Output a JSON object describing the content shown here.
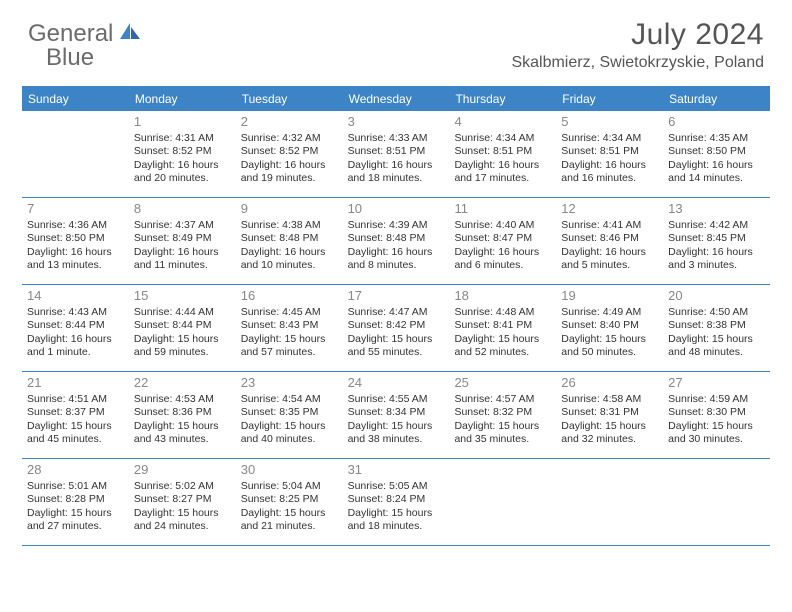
{
  "brand": {
    "part1": "General",
    "part2": "Blue"
  },
  "title": "July 2024",
  "location": "Skalbmierz, Swietokrzyskie, Poland",
  "colors": {
    "header_bg": "#3d84c6",
    "header_text": "#ffffff",
    "rule": "#3d84c6",
    "daynum": "#888888",
    "body_text": "#333333",
    "logo_gray": "#6b6b6b",
    "logo_blue": "#3d84c6",
    "page_bg": "#ffffff"
  },
  "day_names": [
    "Sunday",
    "Monday",
    "Tuesday",
    "Wednesday",
    "Thursday",
    "Friday",
    "Saturday"
  ],
  "weeks": [
    [
      {
        "n": "",
        "sunrise": "",
        "sunset": "",
        "daylight1": "",
        "daylight2": ""
      },
      {
        "n": "1",
        "sunrise": "Sunrise: 4:31 AM",
        "sunset": "Sunset: 8:52 PM",
        "daylight1": "Daylight: 16 hours",
        "daylight2": "and 20 minutes."
      },
      {
        "n": "2",
        "sunrise": "Sunrise: 4:32 AM",
        "sunset": "Sunset: 8:52 PM",
        "daylight1": "Daylight: 16 hours",
        "daylight2": "and 19 minutes."
      },
      {
        "n": "3",
        "sunrise": "Sunrise: 4:33 AM",
        "sunset": "Sunset: 8:51 PM",
        "daylight1": "Daylight: 16 hours",
        "daylight2": "and 18 minutes."
      },
      {
        "n": "4",
        "sunrise": "Sunrise: 4:34 AM",
        "sunset": "Sunset: 8:51 PM",
        "daylight1": "Daylight: 16 hours",
        "daylight2": "and 17 minutes."
      },
      {
        "n": "5",
        "sunrise": "Sunrise: 4:34 AM",
        "sunset": "Sunset: 8:51 PM",
        "daylight1": "Daylight: 16 hours",
        "daylight2": "and 16 minutes."
      },
      {
        "n": "6",
        "sunrise": "Sunrise: 4:35 AM",
        "sunset": "Sunset: 8:50 PM",
        "daylight1": "Daylight: 16 hours",
        "daylight2": "and 14 minutes."
      }
    ],
    [
      {
        "n": "7",
        "sunrise": "Sunrise: 4:36 AM",
        "sunset": "Sunset: 8:50 PM",
        "daylight1": "Daylight: 16 hours",
        "daylight2": "and 13 minutes."
      },
      {
        "n": "8",
        "sunrise": "Sunrise: 4:37 AM",
        "sunset": "Sunset: 8:49 PM",
        "daylight1": "Daylight: 16 hours",
        "daylight2": "and 11 minutes."
      },
      {
        "n": "9",
        "sunrise": "Sunrise: 4:38 AM",
        "sunset": "Sunset: 8:48 PM",
        "daylight1": "Daylight: 16 hours",
        "daylight2": "and 10 minutes."
      },
      {
        "n": "10",
        "sunrise": "Sunrise: 4:39 AM",
        "sunset": "Sunset: 8:48 PM",
        "daylight1": "Daylight: 16 hours",
        "daylight2": "and 8 minutes."
      },
      {
        "n": "11",
        "sunrise": "Sunrise: 4:40 AM",
        "sunset": "Sunset: 8:47 PM",
        "daylight1": "Daylight: 16 hours",
        "daylight2": "and 6 minutes."
      },
      {
        "n": "12",
        "sunrise": "Sunrise: 4:41 AM",
        "sunset": "Sunset: 8:46 PM",
        "daylight1": "Daylight: 16 hours",
        "daylight2": "and 5 minutes."
      },
      {
        "n": "13",
        "sunrise": "Sunrise: 4:42 AM",
        "sunset": "Sunset: 8:45 PM",
        "daylight1": "Daylight: 16 hours",
        "daylight2": "and 3 minutes."
      }
    ],
    [
      {
        "n": "14",
        "sunrise": "Sunrise: 4:43 AM",
        "sunset": "Sunset: 8:44 PM",
        "daylight1": "Daylight: 16 hours",
        "daylight2": "and 1 minute."
      },
      {
        "n": "15",
        "sunrise": "Sunrise: 4:44 AM",
        "sunset": "Sunset: 8:44 PM",
        "daylight1": "Daylight: 15 hours",
        "daylight2": "and 59 minutes."
      },
      {
        "n": "16",
        "sunrise": "Sunrise: 4:45 AM",
        "sunset": "Sunset: 8:43 PM",
        "daylight1": "Daylight: 15 hours",
        "daylight2": "and 57 minutes."
      },
      {
        "n": "17",
        "sunrise": "Sunrise: 4:47 AM",
        "sunset": "Sunset: 8:42 PM",
        "daylight1": "Daylight: 15 hours",
        "daylight2": "and 55 minutes."
      },
      {
        "n": "18",
        "sunrise": "Sunrise: 4:48 AM",
        "sunset": "Sunset: 8:41 PM",
        "daylight1": "Daylight: 15 hours",
        "daylight2": "and 52 minutes."
      },
      {
        "n": "19",
        "sunrise": "Sunrise: 4:49 AM",
        "sunset": "Sunset: 8:40 PM",
        "daylight1": "Daylight: 15 hours",
        "daylight2": "and 50 minutes."
      },
      {
        "n": "20",
        "sunrise": "Sunrise: 4:50 AM",
        "sunset": "Sunset: 8:38 PM",
        "daylight1": "Daylight: 15 hours",
        "daylight2": "and 48 minutes."
      }
    ],
    [
      {
        "n": "21",
        "sunrise": "Sunrise: 4:51 AM",
        "sunset": "Sunset: 8:37 PM",
        "daylight1": "Daylight: 15 hours",
        "daylight2": "and 45 minutes."
      },
      {
        "n": "22",
        "sunrise": "Sunrise: 4:53 AM",
        "sunset": "Sunset: 8:36 PM",
        "daylight1": "Daylight: 15 hours",
        "daylight2": "and 43 minutes."
      },
      {
        "n": "23",
        "sunrise": "Sunrise: 4:54 AM",
        "sunset": "Sunset: 8:35 PM",
        "daylight1": "Daylight: 15 hours",
        "daylight2": "and 40 minutes."
      },
      {
        "n": "24",
        "sunrise": "Sunrise: 4:55 AM",
        "sunset": "Sunset: 8:34 PM",
        "daylight1": "Daylight: 15 hours",
        "daylight2": "and 38 minutes."
      },
      {
        "n": "25",
        "sunrise": "Sunrise: 4:57 AM",
        "sunset": "Sunset: 8:32 PM",
        "daylight1": "Daylight: 15 hours",
        "daylight2": "and 35 minutes."
      },
      {
        "n": "26",
        "sunrise": "Sunrise: 4:58 AM",
        "sunset": "Sunset: 8:31 PM",
        "daylight1": "Daylight: 15 hours",
        "daylight2": "and 32 minutes."
      },
      {
        "n": "27",
        "sunrise": "Sunrise: 4:59 AM",
        "sunset": "Sunset: 8:30 PM",
        "daylight1": "Daylight: 15 hours",
        "daylight2": "and 30 minutes."
      }
    ],
    [
      {
        "n": "28",
        "sunrise": "Sunrise: 5:01 AM",
        "sunset": "Sunset: 8:28 PM",
        "daylight1": "Daylight: 15 hours",
        "daylight2": "and 27 minutes."
      },
      {
        "n": "29",
        "sunrise": "Sunrise: 5:02 AM",
        "sunset": "Sunset: 8:27 PM",
        "daylight1": "Daylight: 15 hours",
        "daylight2": "and 24 minutes."
      },
      {
        "n": "30",
        "sunrise": "Sunrise: 5:04 AM",
        "sunset": "Sunset: 8:25 PM",
        "daylight1": "Daylight: 15 hours",
        "daylight2": "and 21 minutes."
      },
      {
        "n": "31",
        "sunrise": "Sunrise: 5:05 AM",
        "sunset": "Sunset: 8:24 PM",
        "daylight1": "Daylight: 15 hours",
        "daylight2": "and 18 minutes."
      },
      {
        "n": "",
        "sunrise": "",
        "sunset": "",
        "daylight1": "",
        "daylight2": ""
      },
      {
        "n": "",
        "sunrise": "",
        "sunset": "",
        "daylight1": "",
        "daylight2": ""
      },
      {
        "n": "",
        "sunrise": "",
        "sunset": "",
        "daylight1": "",
        "daylight2": ""
      }
    ]
  ]
}
